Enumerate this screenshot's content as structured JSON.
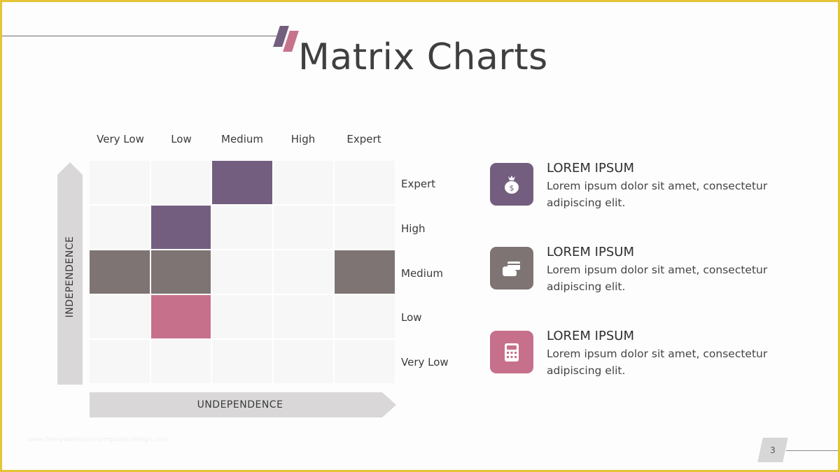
{
  "slide": {
    "title": "Matrix Charts",
    "page_number": "3",
    "watermark": "www.free-powerpoint-templates-design.com"
  },
  "colors": {
    "frame": "#e3c537",
    "purple": "#735e7f",
    "gray": "#7d7473",
    "pink": "#c7708b",
    "empty_cell": "#f7f7f7",
    "arrow": "#d9d7d8"
  },
  "matrix": {
    "columns": [
      "Very Low",
      "Low",
      "Medium",
      "High",
      "Expert"
    ],
    "rows": [
      "Expert",
      "High",
      "Medium",
      "Low",
      "Very Low"
    ],
    "x_axis_label": "UNDEPENDENCE",
    "y_axis_label": "INDEPENDENCE",
    "filled_cells": [
      {
        "row": "Expert",
        "column": "Medium",
        "color": "purple"
      },
      {
        "row": "High",
        "column": "Low",
        "color": "purple"
      },
      {
        "row": "Medium",
        "column": "Very Low",
        "color": "gray"
      },
      {
        "row": "Medium",
        "column": "Low",
        "color": "gray"
      },
      {
        "row": "Medium",
        "column": "Expert",
        "color": "gray"
      },
      {
        "row": "Low",
        "column": "Low",
        "color": "pink"
      }
    ]
  },
  "info_items": [
    {
      "heading": "LOREM IPSUM",
      "text": "Lorem ipsum dolor sit amet, consectetur adipiscing elit.",
      "icon": "money-bag-icon",
      "color": "#735e7f"
    },
    {
      "heading": "LOREM IPSUM",
      "text": "Lorem ipsum dolor sit amet, consectetur adipiscing elit.",
      "icon": "card-in-hand-icon",
      "color": "#7d7473"
    },
    {
      "heading": "LOREM IPSUM",
      "text": "Lorem ipsum dolor sit amet, consectetur adipiscing elit.",
      "icon": "calculator-icon",
      "color": "#c7708b"
    }
  ]
}
